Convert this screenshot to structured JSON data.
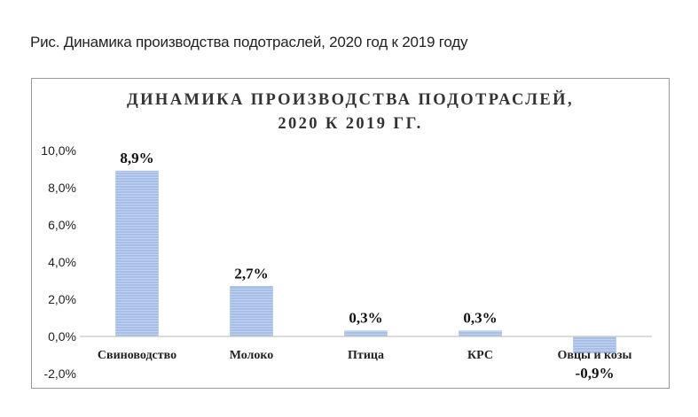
{
  "caption": "Рис. Динамика производства подотраслей, 2020 год к 2019 году",
  "chart_data": {
    "type": "bar",
    "title_lines": [
      "ДИНАМИКА ПРОИЗВОДСТВА ПОДОТРАСЛЕЙ,",
      "2020 К 2019 ГГ."
    ],
    "categories": [
      "Свиноводство",
      "Молоко",
      "Птица",
      "КРС",
      "Овцы и козы"
    ],
    "values": [
      8.9,
      2.7,
      0.3,
      0.3,
      -0.9
    ],
    "data_labels": [
      "8,9%",
      "2,7%",
      "0,3%",
      "0,3%",
      "-0,9%"
    ],
    "y_ticks": [
      {
        "value": 10,
        "label": "10,0%"
      },
      {
        "value": 8,
        "label": "8,0%"
      },
      {
        "value": 6,
        "label": "6,0%"
      },
      {
        "value": 4,
        "label": "4,0%"
      },
      {
        "value": 2,
        "label": "2,0%"
      },
      {
        "value": 0,
        "label": "0,0%"
      },
      {
        "value": -2,
        "label": "-2,0%"
      }
    ],
    "ylim": [
      -2,
      10
    ],
    "grid": false,
    "legend": "none",
    "bar_color": "#a7bfe6",
    "bar_stripe_color": "#bfd2ef",
    "axis_color": "#c8c8c8"
  }
}
